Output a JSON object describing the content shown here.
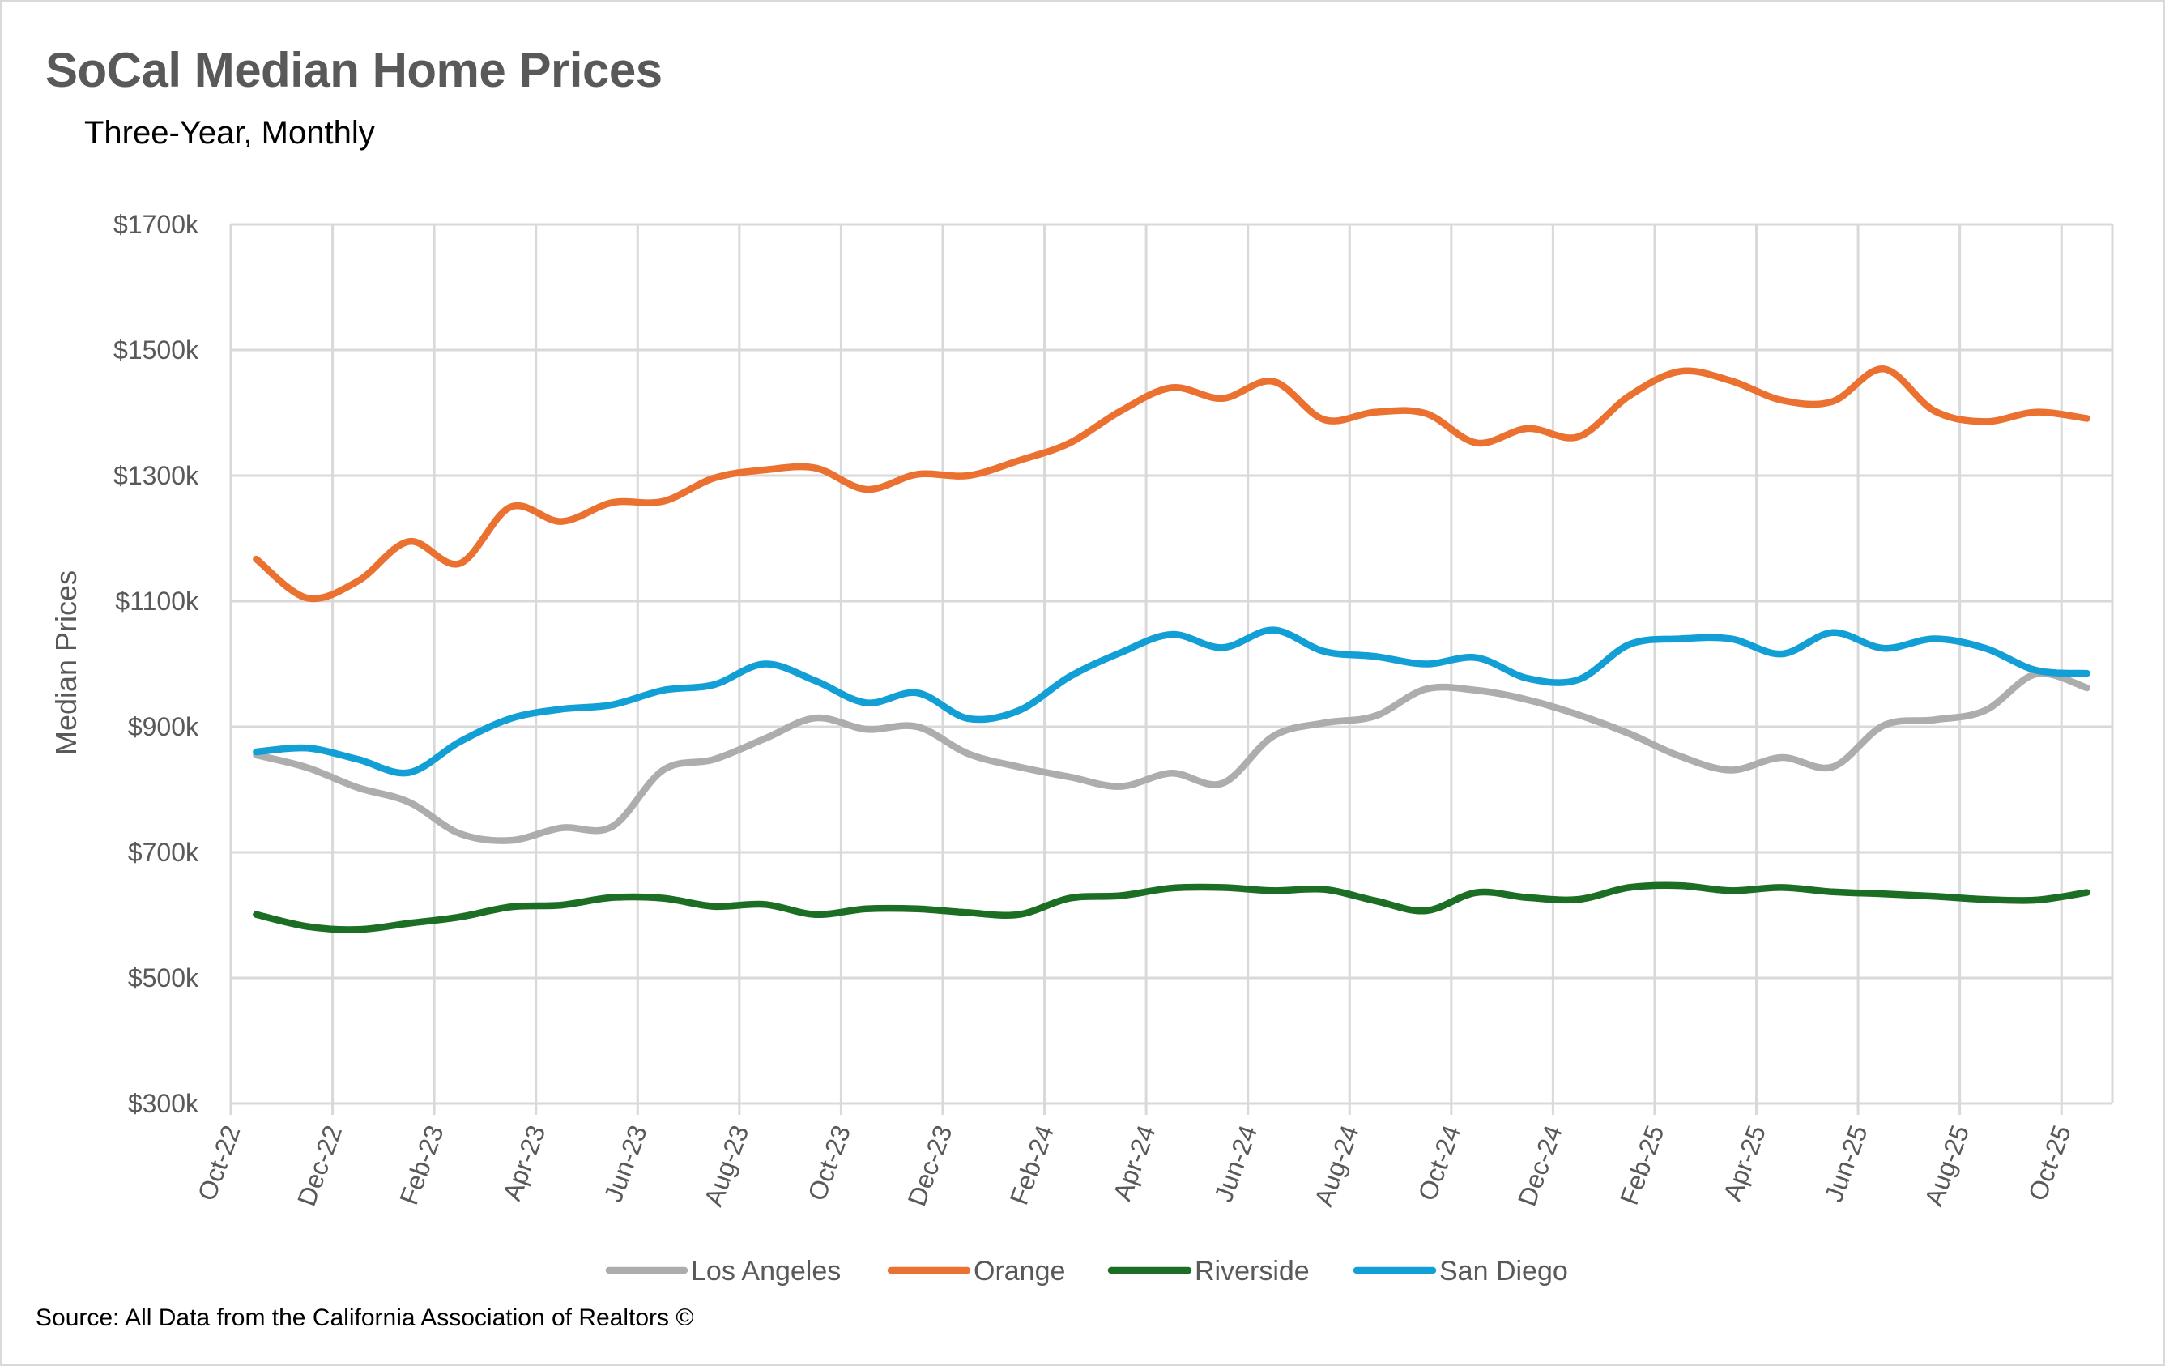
{
  "header": {
    "title": "SoCal Median Home Prices",
    "subtitle": "Three-Year, Monthly"
  },
  "footer": {
    "source": "Source: All Data from the California Association of Realtors ©"
  },
  "chart_data": {
    "type": "line",
    "title": "SoCal Median Home Prices",
    "subtitle": "Three-Year, Monthly",
    "xlabel": "",
    "ylabel": "Median Prices",
    "ylim": [
      300,
      1700
    ],
    "y_unit": "thousands USD",
    "y_ticks": [
      300,
      500,
      700,
      900,
      1100,
      1300,
      1500,
      1700
    ],
    "y_tick_labels": [
      "$300k",
      "$500k",
      "$700k",
      "$900k",
      "$1100k",
      "$1300k",
      "$1500k",
      "$1700k"
    ],
    "grid": true,
    "smoothed": true,
    "legend_position": "bottom",
    "categories": [
      "Oct-22",
      "Nov-22",
      "Dec-22",
      "Jan-23",
      "Feb-23",
      "Mar-23",
      "Apr-23",
      "May-23",
      "Jun-23",
      "Jul-23",
      "Aug-23",
      "Sep-23",
      "Oct-23",
      "Nov-23",
      "Dec-23",
      "Jan-24",
      "Feb-24",
      "Mar-24",
      "Apr-24",
      "May-24",
      "Jun-24",
      "Jul-24",
      "Aug-24",
      "Sep-24",
      "Oct-24",
      "Nov-24",
      "Dec-24",
      "Jan-25",
      "Feb-25",
      "Mar-25",
      "Apr-25",
      "May-25",
      "Jun-25",
      "Jul-25",
      "Aug-25",
      "Sep-25",
      "Oct-25"
    ],
    "x_tick_labels": [
      "Oct-22",
      "Dec-22",
      "Feb-23",
      "Apr-23",
      "Jun-23",
      "Aug-23",
      "Oct-23",
      "Dec-23",
      "Feb-24",
      "Apr-24",
      "Jun-24",
      "Aug-24",
      "Oct-24",
      "Dec-24",
      "Feb-25",
      "Apr-25",
      "Jun-25",
      "Aug-25",
      "Oct-25"
    ],
    "series": [
      {
        "name": "Los Angeles",
        "color": "#ADADAD",
        "values": [
          855,
          835,
          803,
          780,
          730,
          719,
          739,
          741,
          831,
          848,
          881,
          914,
          896,
          900,
          857,
          836,
          820,
          805,
          826,
          810,
          885,
          906,
          917,
          960,
          958,
          943,
          919,
          889,
          853,
          831,
          851,
          836,
          902,
          911,
          926,
          984,
          962
        ]
      },
      {
        "name": "Orange",
        "color": "#EB7131",
        "values": [
          1167,
          1105,
          1132,
          1195,
          1160,
          1250,
          1227,
          1257,
          1259,
          1296,
          1309,
          1312,
          1278,
          1302,
          1300,
          1324,
          1352,
          1403,
          1440,
          1423,
          1450,
          1389,
          1401,
          1399,
          1352,
          1375,
          1362,
          1427,
          1466,
          1451,
          1420,
          1418,
          1470,
          1403,
          1386,
          1401,
          1391
        ]
      },
      {
        "name": "Riverside",
        "color": "#1B6E23",
        "values": [
          601,
          582,
          577,
          587,
          597,
          613,
          616,
          628,
          627,
          614,
          617,
          601,
          610,
          610,
          604,
          601,
          627,
          631,
          643,
          644,
          639,
          641,
          623,
          607,
          636,
          628,
          625,
          644,
          647,
          639,
          644,
          637,
          634,
          630,
          625,
          624,
          636
        ]
      },
      {
        "name": "San Diego",
        "color": "#129FD6",
        "values": [
          860,
          866,
          848,
          827,
          876,
          913,
          928,
          935,
          958,
          967,
          1000,
          973,
          938,
          954,
          913,
          926,
          980,
          1018,
          1047,
          1026,
          1054,
          1020,
          1012,
          1000,
          1010,
          977,
          975,
          1031,
          1040,
          1040,
          1016,
          1050,
          1025,
          1040,
          1025,
          990,
          985
        ]
      }
    ]
  }
}
